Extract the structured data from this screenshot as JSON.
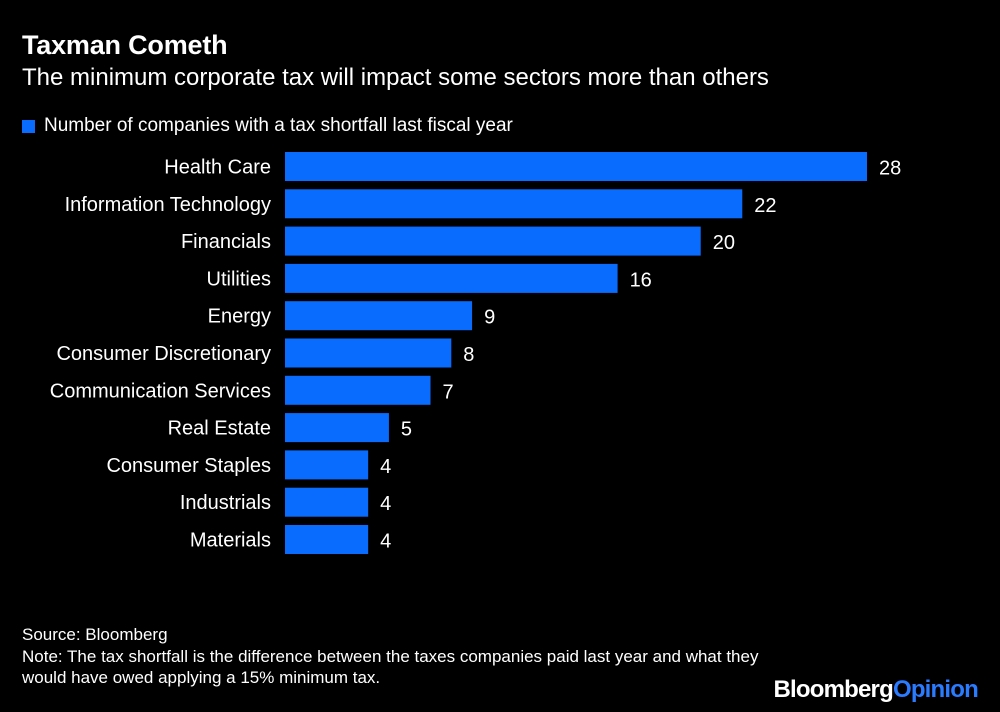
{
  "chart_data": {
    "type": "bar",
    "orientation": "horizontal",
    "title": "Taxman Cometh",
    "subtitle": "The minimum corporate tax will impact some sectors more than others",
    "legend": [
      "Number of companies with a tax shortfall last fiscal year"
    ],
    "categories": [
      "Health Care",
      "Information Technology",
      "Financials",
      "Utilities",
      "Energy",
      "Consumer Discretionary",
      "Communication Services",
      "Real Estate",
      "Consumer Staples",
      "Industrials",
      "Materials"
    ],
    "values": [
      28,
      22,
      20,
      16,
      9,
      8,
      7,
      5,
      4,
      4,
      4
    ],
    "xlim": [
      0,
      28
    ],
    "bar_color": "#0a6cff"
  },
  "footer": {
    "source": "Source: Bloomberg",
    "note": "Note: The tax shortfall is the difference between the taxes companies paid last year and what they would have owed applying a 15% minimum tax."
  },
  "brand": {
    "name": "Bloomberg",
    "suffix": "Opinion"
  },
  "colors": {
    "background": "#000000",
    "text": "#ffffff",
    "accent": "#2a7bff"
  }
}
